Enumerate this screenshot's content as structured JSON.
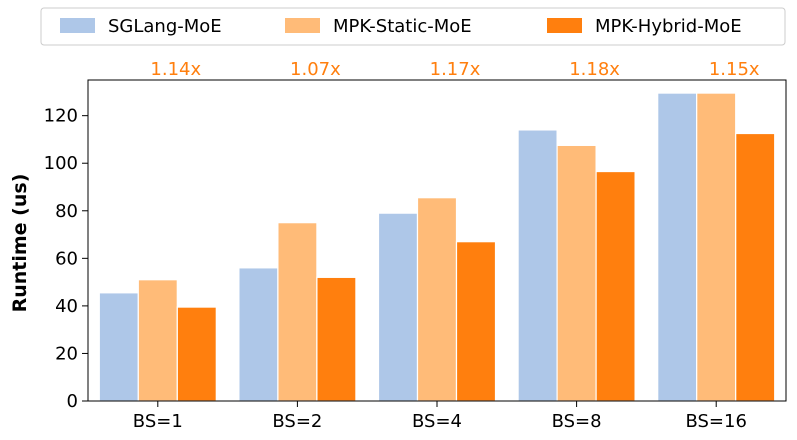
{
  "chart_data": {
    "type": "bar",
    "title": "",
    "xlabel": "",
    "ylabel": "Runtime (us)",
    "ylim": [
      0,
      135
    ],
    "yticks": [
      0,
      20,
      40,
      60,
      80,
      100,
      120
    ],
    "categories": [
      "BS=1",
      "BS=2",
      "BS=4",
      "BS=8",
      "BS=16"
    ],
    "series": [
      {
        "name": "SGLang-MoE",
        "color": "#aec7e8",
        "values": [
          45.5,
          56,
          79,
          114,
          129.5
        ]
      },
      {
        "name": "MPK-Static-MoE",
        "color": "#ffbb78",
        "values": [
          51,
          75,
          85.5,
          107.5,
          129.5
        ]
      },
      {
        "name": "MPK-Hybrid-MoE",
        "color": "#ff7f0e",
        "values": [
          39.5,
          52,
          67,
          96.5,
          112.5
        ]
      }
    ],
    "annotations": [
      "1.14x",
      "1.07x",
      "1.17x",
      "1.18x",
      "1.15x"
    ],
    "annotation_color": "#ff7f0e",
    "legend_position": "top-center",
    "grid": false
  }
}
